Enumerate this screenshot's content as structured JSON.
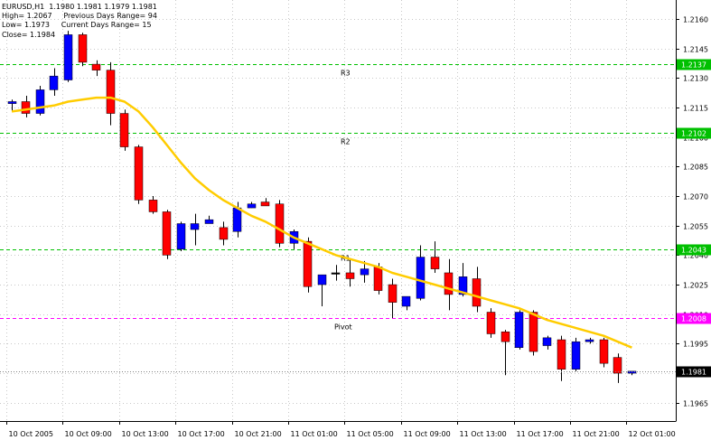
{
  "header": {
    "line1": "EURUSD,H1  1.1980 1.1981 1.1979 1.1981",
    "line2": "High= 1.2067     Previous Days Range= 94",
    "line3": "Low= 1.1973     Current Days Range= 15",
    "line4": "Close= 1.1984"
  },
  "colors": {
    "bull": "#0000ff",
    "bear": "#ff0000",
    "wick": "#000000",
    "ma": "#ffcc00",
    "level_green": "#00c000",
    "level_pivot": "#ff00ff",
    "grid": "#c8c8c8",
    "price_label_text": "#ffffff",
    "current_label_bg": "#000000"
  },
  "chart_data": {
    "type": "candlestick",
    "symbol": "EURUSD",
    "timeframe": "H1",
    "ylim": [
      1.196,
      1.217
    ],
    "y_ticks": [
      "1.2160",
      "1.2145",
      "1.2130",
      "1.2115",
      "1.2100",
      "1.2085",
      "1.2070",
      "1.2055",
      "1.2040",
      "1.2025",
      "1.2010",
      "1.1995",
      "1.1980",
      "1.1965"
    ],
    "x_ticks": [
      {
        "i": 0,
        "label": "10 Oct 2005"
      },
      {
        "i": 4,
        "label": "10 Oct 09:00"
      },
      {
        "i": 8,
        "label": "10 Oct 13:00"
      },
      {
        "i": 12,
        "label": "10 Oct 17:00"
      },
      {
        "i": 16,
        "label": "10 Oct 21:00"
      },
      {
        "i": 20,
        "label": "11 Oct 01:00"
      },
      {
        "i": 24,
        "label": "11 Oct 05:00"
      },
      {
        "i": 28,
        "label": "11 Oct 09:00"
      },
      {
        "i": 32,
        "label": "11 Oct 13:00"
      },
      {
        "i": 36,
        "label": "11 Oct 17:00"
      },
      {
        "i": 40,
        "label": "11 Oct 21:00"
      },
      {
        "i": 44,
        "label": "12 Oct 01:00"
      }
    ],
    "candles": [
      {
        "o": 1.2117,
        "h": 1.2119,
        "l": 1.2113,
        "c": 1.2118
      },
      {
        "o": 1.2118,
        "h": 1.2121,
        "l": 1.211,
        "c": 1.2112
      },
      {
        "o": 1.2112,
        "h": 1.2126,
        "l": 1.2111,
        "c": 1.2124
      },
      {
        "o": 1.2124,
        "h": 1.2135,
        "l": 1.2121,
        "c": 1.2131
      },
      {
        "o": 1.2129,
        "h": 1.2154,
        "l": 1.2128,
        "c": 1.2152
      },
      {
        "o": 1.2152,
        "h": 1.2153,
        "l": 1.2136,
        "c": 1.2138
      },
      {
        "o": 1.2137,
        "h": 1.2139,
        "l": 1.2131,
        "c": 1.2134
      },
      {
        "o": 1.2134,
        "h": 1.2138,
        "l": 1.2106,
        "c": 1.2112
      },
      {
        "o": 1.2112,
        "h": 1.2114,
        "l": 1.2093,
        "c": 1.2095
      },
      {
        "o": 1.2095,
        "h": 1.2096,
        "l": 1.2066,
        "c": 1.2068
      },
      {
        "o": 1.2068,
        "h": 1.207,
        "l": 1.2061,
        "c": 1.2062
      },
      {
        "o": 1.2062,
        "h": 1.2063,
        "l": 1.2038,
        "c": 1.204
      },
      {
        "o": 1.2043,
        "h": 1.2057,
        "l": 1.2042,
        "c": 1.2056
      },
      {
        "o": 1.2053,
        "h": 1.2061,
        "l": 1.2045,
        "c": 1.2056
      },
      {
        "o": 1.2056,
        "h": 1.206,
        "l": 1.2056,
        "c": 1.2058
      },
      {
        "o": 1.2054,
        "h": 1.2057,
        "l": 1.2045,
        "c": 1.2048
      },
      {
        "o": 1.2052,
        "h": 1.2067,
        "l": 1.2049,
        "c": 1.2064
      },
      {
        "o": 1.2064,
        "h": 1.2067,
        "l": 1.2064,
        "c": 1.2066
      },
      {
        "o": 1.2067,
        "h": 1.2069,
        "l": 1.2065,
        "c": 1.2065
      },
      {
        "o": 1.2066,
        "h": 1.2068,
        "l": 1.2044,
        "c": 1.2046
      },
      {
        "o": 1.2046,
        "h": 1.2053,
        "l": 1.2043,
        "c": 1.2052
      },
      {
        "o": 1.2047,
        "h": 1.2049,
        "l": 1.2021,
        "c": 1.2024
      },
      {
        "o": 1.2025,
        "h": 1.203,
        "l": 1.2014,
        "c": 1.203
      },
      {
        "o": 1.2031,
        "h": 1.2035,
        "l": 1.2027,
        "c": 1.2031
      },
      {
        "o": 1.2031,
        "h": 1.2038,
        "l": 1.2024,
        "c": 1.2028
      },
      {
        "o": 1.203,
        "h": 1.2037,
        "l": 1.2026,
        "c": 1.2033
      },
      {
        "o": 1.2034,
        "h": 1.2036,
        "l": 1.202,
        "c": 1.2022
      },
      {
        "o": 1.2025,
        "h": 1.2028,
        "l": 1.2008,
        "c": 1.2016
      },
      {
        "o": 1.2014,
        "h": 1.2019,
        "l": 1.2012,
        "c": 1.2019
      },
      {
        "o": 1.2018,
        "h": 1.2045,
        "l": 1.2017,
        "c": 1.2039
      },
      {
        "o": 1.2039,
        "h": 1.2047,
        "l": 1.2031,
        "c": 1.2033
      },
      {
        "o": 1.2031,
        "h": 1.2038,
        "l": 1.2012,
        "c": 1.202
      },
      {
        "o": 1.202,
        "h": 1.2036,
        "l": 1.2019,
        "c": 1.2029
      },
      {
        "o": 1.2028,
        "h": 1.2034,
        "l": 1.2011,
        "c": 1.2014
      },
      {
        "o": 1.2011,
        "h": 1.2013,
        "l": 1.1998,
        "c": 1.2
      },
      {
        "o": 1.2001,
        "h": 1.2002,
        "l": 1.1979,
        "c": 1.1996
      },
      {
        "o": 1.1993,
        "h": 1.2012,
        "l": 1.1992,
        "c": 1.2011
      },
      {
        "o": 1.2011,
        "h": 1.2012,
        "l": 1.1989,
        "c": 1.1991
      },
      {
        "o": 1.1994,
        "h": 1.1999,
        "l": 1.1992,
        "c": 1.1998
      },
      {
        "o": 1.1997,
        "h": 1.1999,
        "l": 1.1976,
        "c": 1.1982
      },
      {
        "o": 1.1982,
        "h": 1.1998,
        "l": 1.1981,
        "c": 1.1996
      },
      {
        "o": 1.1996,
        "h": 1.1998,
        "l": 1.1995,
        "c": 1.1997
      },
      {
        "o": 1.1997,
        "h": 1.1998,
        "l": 1.1983,
        "c": 1.1985
      },
      {
        "o": 1.1988,
        "h": 1.199,
        "l": 1.1975,
        "c": 1.198
      },
      {
        "o": 1.198,
        "h": 1.1981,
        "l": 1.1979,
        "c": 1.1981
      }
    ],
    "moving_average": [
      1.2113,
      1.2114,
      1.2115,
      1.2116,
      1.2118,
      1.2119,
      1.212,
      1.212,
      1.2118,
      1.2113,
      1.2105,
      1.2096,
      1.2087,
      1.2079,
      1.2073,
      1.2068,
      1.2064,
      1.206,
      1.2057,
      1.2053,
      1.2049,
      1.2046,
      1.2043,
      1.204,
      1.2038,
      1.2036,
      1.2034,
      1.2031,
      1.2029,
      1.2027,
      1.2025,
      1.2023,
      1.2021,
      1.2019,
      1.2017,
      1.2015,
      1.2013,
      1.201,
      1.2007,
      1.2005,
      1.2003,
      1.2001,
      1.1999,
      1.1996,
      1.1993
    ],
    "levels": [
      {
        "label": "R3",
        "value": 1.2137,
        "value_label": "1.2137",
        "kind": "green"
      },
      {
        "label": "R2",
        "value": 1.2102,
        "value_label": "1.2102",
        "kind": "green"
      },
      {
        "label": "R1",
        "value": 1.2043,
        "value_label": "1.2043",
        "kind": "green"
      },
      {
        "label": "Pivot",
        "value": 1.2008,
        "value_label": "1.2008",
        "kind": "pivot"
      }
    ],
    "current_price": {
      "value": 1.1981,
      "label": "1.1981"
    },
    "grid": true
  }
}
